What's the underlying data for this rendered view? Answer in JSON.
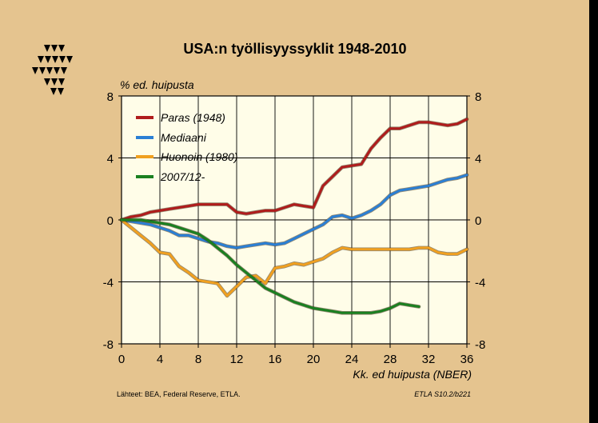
{
  "chart_data": {
    "type": "line",
    "title": "USA:n työllisyyssyklit 1948-2010",
    "ylabel": "% ed. huipusta",
    "xlabel": "Kk. ed huipusta (NBER)",
    "xlim": [
      0,
      36
    ],
    "ylim": [
      -8,
      8
    ],
    "x_ticks": [
      "0",
      "4",
      "8",
      "12",
      "16",
      "20",
      "24",
      "28",
      "32",
      "36"
    ],
    "y_ticks": [
      "8",
      "4",
      "0",
      "-4",
      "-8"
    ],
    "grid": true,
    "legend_position": "top-left",
    "series": [
      {
        "name": "Paras (1948)",
        "color": "#b01c1c",
        "x": [
          0,
          1,
          2,
          3,
          4,
          5,
          6,
          7,
          8,
          9,
          10,
          11,
          12,
          13,
          14,
          15,
          16,
          17,
          18,
          19,
          20,
          21,
          22,
          23,
          24,
          25,
          26,
          27,
          28,
          29,
          30,
          31,
          32,
          33,
          34,
          35,
          36
        ],
        "y": [
          0,
          0.2,
          0.3,
          0.5,
          0.6,
          0.7,
          0.8,
          0.9,
          1.0,
          1.0,
          1.0,
          1.0,
          0.5,
          0.4,
          0.5,
          0.6,
          0.6,
          0.8,
          1.0,
          0.9,
          0.8,
          2.2,
          2.8,
          3.4,
          3.5,
          3.6,
          4.6,
          5.3,
          5.9,
          5.9,
          6.1,
          6.3,
          6.3,
          6.2,
          6.1,
          6.2,
          6.5
        ]
      },
      {
        "name": "Mediaani",
        "color": "#2b7fd4",
        "x": [
          0,
          1,
          2,
          3,
          4,
          5,
          6,
          7,
          8,
          9,
          10,
          11,
          12,
          13,
          14,
          15,
          16,
          17,
          18,
          19,
          20,
          21,
          22,
          23,
          24,
          25,
          26,
          27,
          28,
          29,
          30,
          31,
          32,
          33,
          34,
          35,
          36
        ],
        "y": [
          0,
          -0.1,
          -0.2,
          -0.3,
          -0.5,
          -0.7,
          -1.0,
          -1.0,
          -1.2,
          -1.4,
          -1.5,
          -1.7,
          -1.8,
          -1.7,
          -1.6,
          -1.5,
          -1.6,
          -1.5,
          -1.2,
          -0.9,
          -0.6,
          -0.3,
          0.2,
          0.3,
          0.1,
          0.3,
          0.6,
          1.0,
          1.6,
          1.9,
          2.0,
          2.1,
          2.2,
          2.4,
          2.6,
          2.7,
          2.9
        ]
      },
      {
        "name": "Huonoin (1980)",
        "color": "#f0a020",
        "x": [
          0,
          1,
          2,
          3,
          4,
          5,
          6,
          7,
          8,
          9,
          10,
          11,
          12,
          13,
          14,
          15,
          16,
          17,
          18,
          19,
          20,
          21,
          22,
          23,
          24,
          25,
          26,
          27,
          28,
          29,
          30,
          31,
          32,
          33,
          34,
          35,
          36
        ],
        "y": [
          0,
          -0.5,
          -1.0,
          -1.5,
          -2.1,
          -2.2,
          -3.0,
          -3.4,
          -3.9,
          -4.0,
          -4.1,
          -4.9,
          -4.3,
          -3.7,
          -3.6,
          -4.1,
          -3.1,
          -3.0,
          -2.8,
          -2.9,
          -2.7,
          -2.5,
          -2.1,
          -1.8,
          -1.9,
          -1.9,
          -1.9,
          -1.9,
          -1.9,
          -1.9,
          -1.9,
          -1.8,
          -1.8,
          -2.1,
          -2.2,
          -2.2,
          -1.9
        ]
      },
      {
        "name": "2007/12-",
        "color": "#1a8020",
        "x": [
          0,
          1,
          2,
          3,
          4,
          5,
          6,
          7,
          8,
          9,
          10,
          11,
          12,
          13,
          14,
          15,
          16,
          17,
          18,
          19,
          20,
          21,
          22,
          23,
          24,
          25,
          26,
          27,
          28,
          29,
          30,
          31
        ],
        "y": [
          0,
          0,
          0,
          -0.1,
          -0.2,
          -0.3,
          -0.5,
          -0.7,
          -0.9,
          -1.3,
          -1.8,
          -2.3,
          -2.9,
          -3.4,
          -3.9,
          -4.4,
          -4.7,
          -5.0,
          -5.3,
          -5.5,
          -5.7,
          -5.8,
          -5.9,
          -6.0,
          -6.0,
          -6.0,
          -6.0,
          -5.9,
          -5.7,
          -5.4,
          -5.5,
          -5.6
        ]
      }
    ]
  },
  "footer": {
    "sources": "Lähteet:   BEA, Federal Reserve, ETLA.",
    "code": "ETLA S10.2/b221"
  },
  "logo": {
    "name": "etla-logo-icon"
  }
}
